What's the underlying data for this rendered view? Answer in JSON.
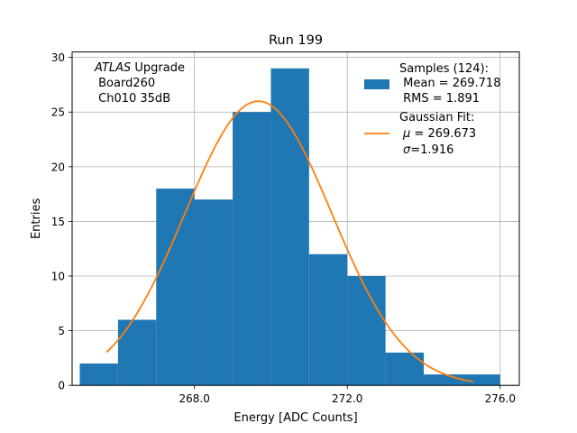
{
  "chart_data": {
    "type": "bar",
    "title": "Run 199",
    "xlabel": "Energy [ADC Counts]",
    "ylabel": "Entries",
    "xlim": [
      264.8,
      276.5
    ],
    "ylim": [
      0,
      30.5
    ],
    "grid": true,
    "bin_edges": [
      265,
      266,
      267,
      268,
      269,
      270,
      271,
      272,
      273,
      274,
      275,
      276
    ],
    "counts": [
      2,
      6,
      18,
      17,
      25,
      29,
      12,
      10,
      3,
      1,
      1
    ],
    "x_ticks": [
      268.0,
      272.0,
      276.0
    ],
    "x_tick_labels": [
      "268.0",
      "272.0",
      "276.0"
    ],
    "y_ticks": [
      0,
      5,
      10,
      15,
      20,
      25,
      30
    ],
    "y_tick_labels": [
      "0",
      "5",
      "10",
      "15",
      "20",
      "25",
      "30"
    ],
    "bar_color": "#1f77b4",
    "fit_color": "#ff7f0e",
    "fit": {
      "mu": 269.673,
      "sigma": 1.916,
      "amplitude": 26,
      "x_range": [
        265.7,
        275.3
      ]
    },
    "annotation": {
      "line1_italic": "ATLAS",
      "line1_rest": " Upgrade",
      "line2": " Board260",
      "line3": " Ch010 35dB"
    },
    "legend": {
      "position": "top-right",
      "hist_lines": [
        "Samples (124):",
        " Mean = 269.718",
        " RMS = 1.891"
      ],
      "fit_line1": "Gaussian Fit:",
      "fit_mu_symbol": "μ",
      "fit_mu_value": " = 269.673",
      "fit_sigma_symbol": "σ",
      "fit_sigma_value": "=1.916"
    }
  }
}
